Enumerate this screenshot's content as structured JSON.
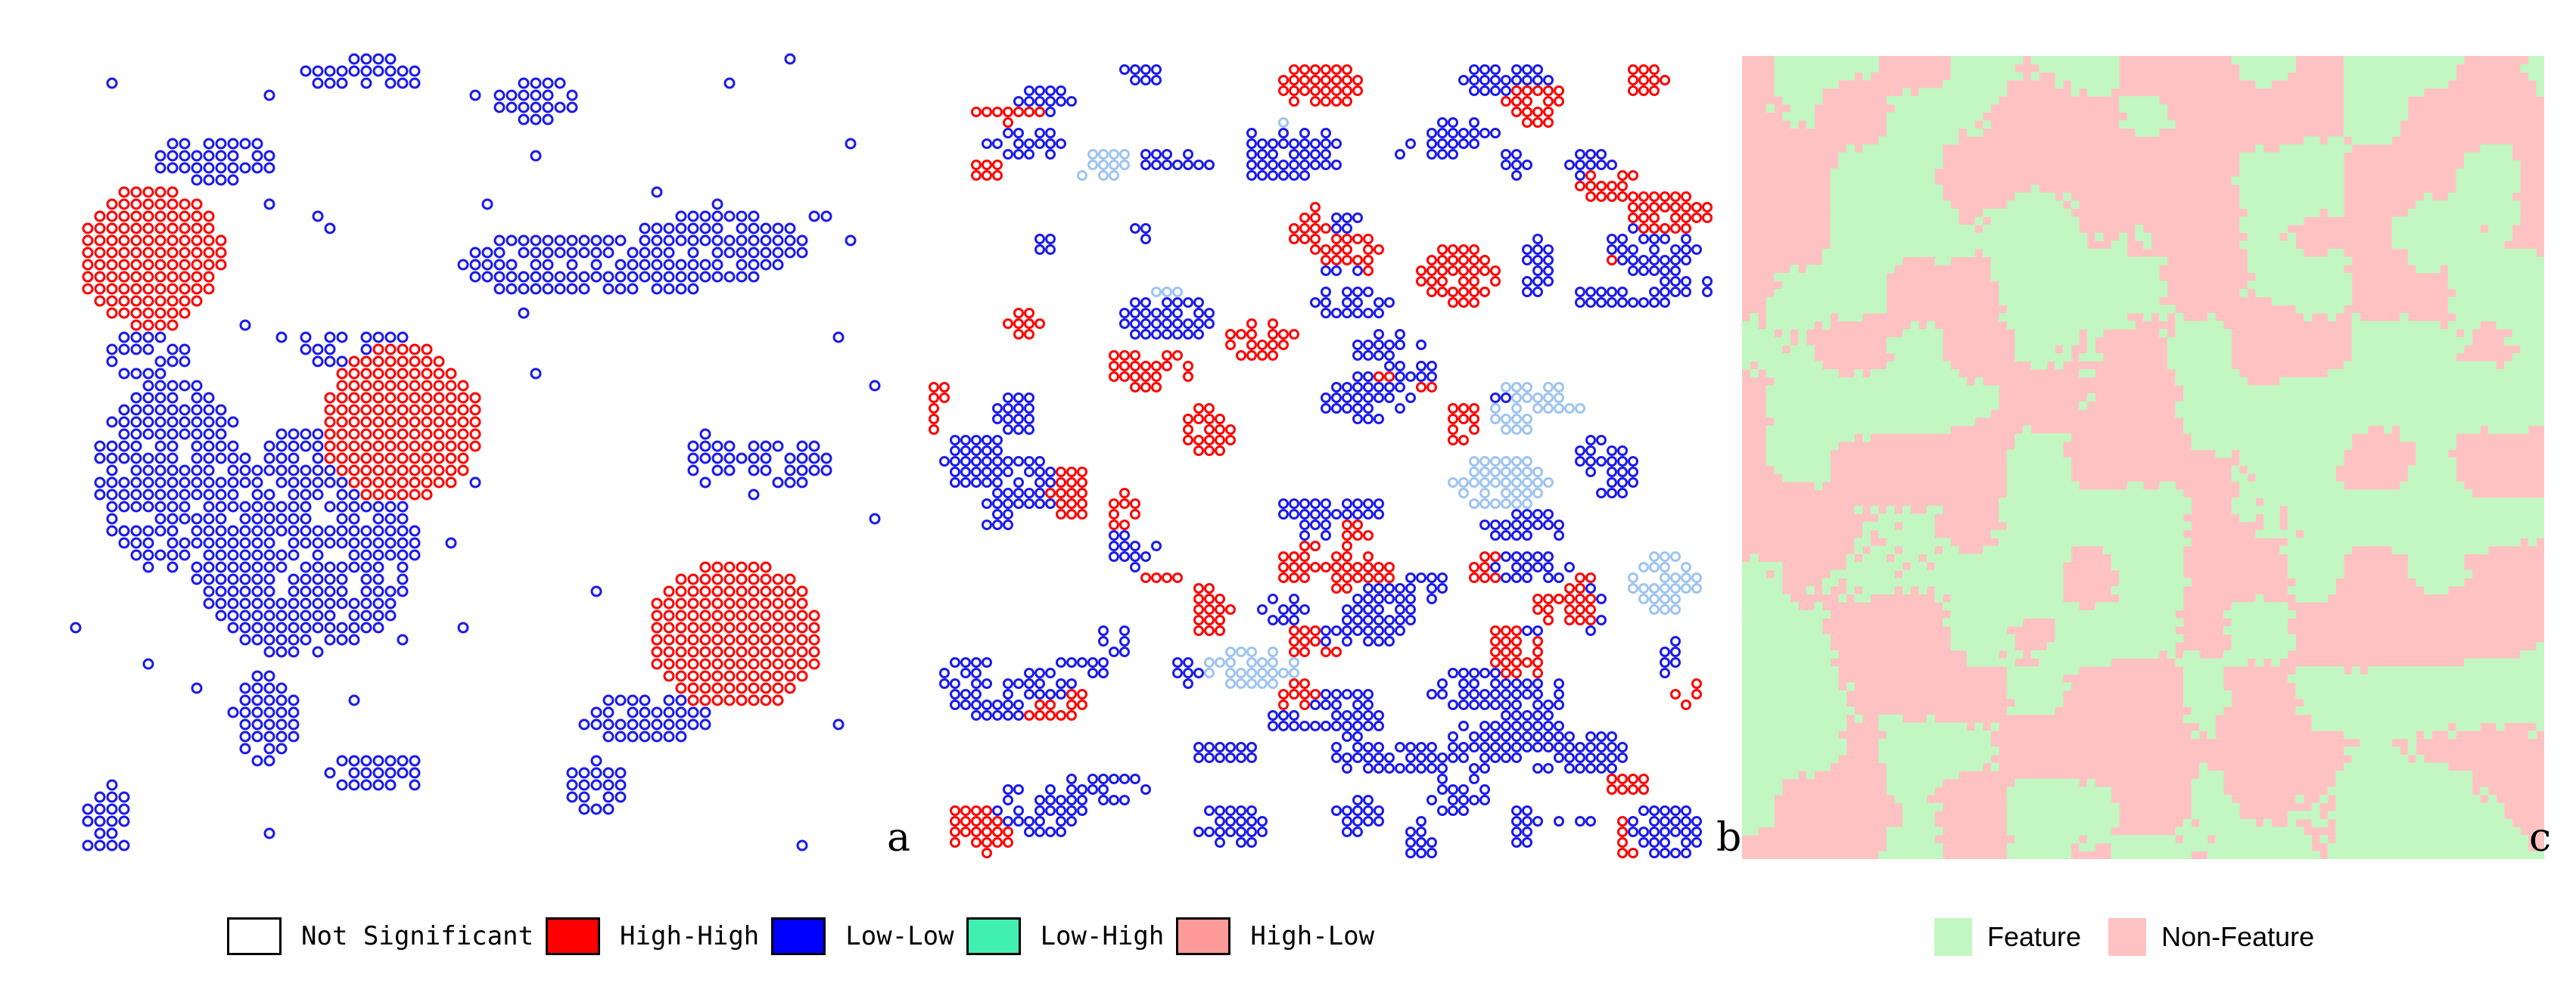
{
  "panels": {
    "a": {
      "letter": "a"
    },
    "b": {
      "letter": "b"
    },
    "c": {
      "letter": "c"
    }
  },
  "legend_lisa": {
    "items": [
      {
        "label": "Not Significant",
        "color": "#ffffff"
      },
      {
        "label": "High-High",
        "color": "#ff0000"
      },
      {
        "label": "Low-Low",
        "color": "#0000ff"
      },
      {
        "label": "Low-High",
        "color": "#40f0b0"
      },
      {
        "label": "High-Low",
        "color": "#ff9a9a"
      }
    ]
  },
  "legend_feature": {
    "items": [
      {
        "label": "Feature",
        "color": "#c2f7c2"
      },
      {
        "label": "Non-Feature",
        "color": "#ffc2c2"
      }
    ]
  },
  "colors": {
    "high_high": "#ff0000",
    "low_low": "#1a1aee",
    "low_high_light": "#9ec4f0",
    "feature": "#c2f7c2",
    "non_feature": "#ffc2c2"
  }
}
